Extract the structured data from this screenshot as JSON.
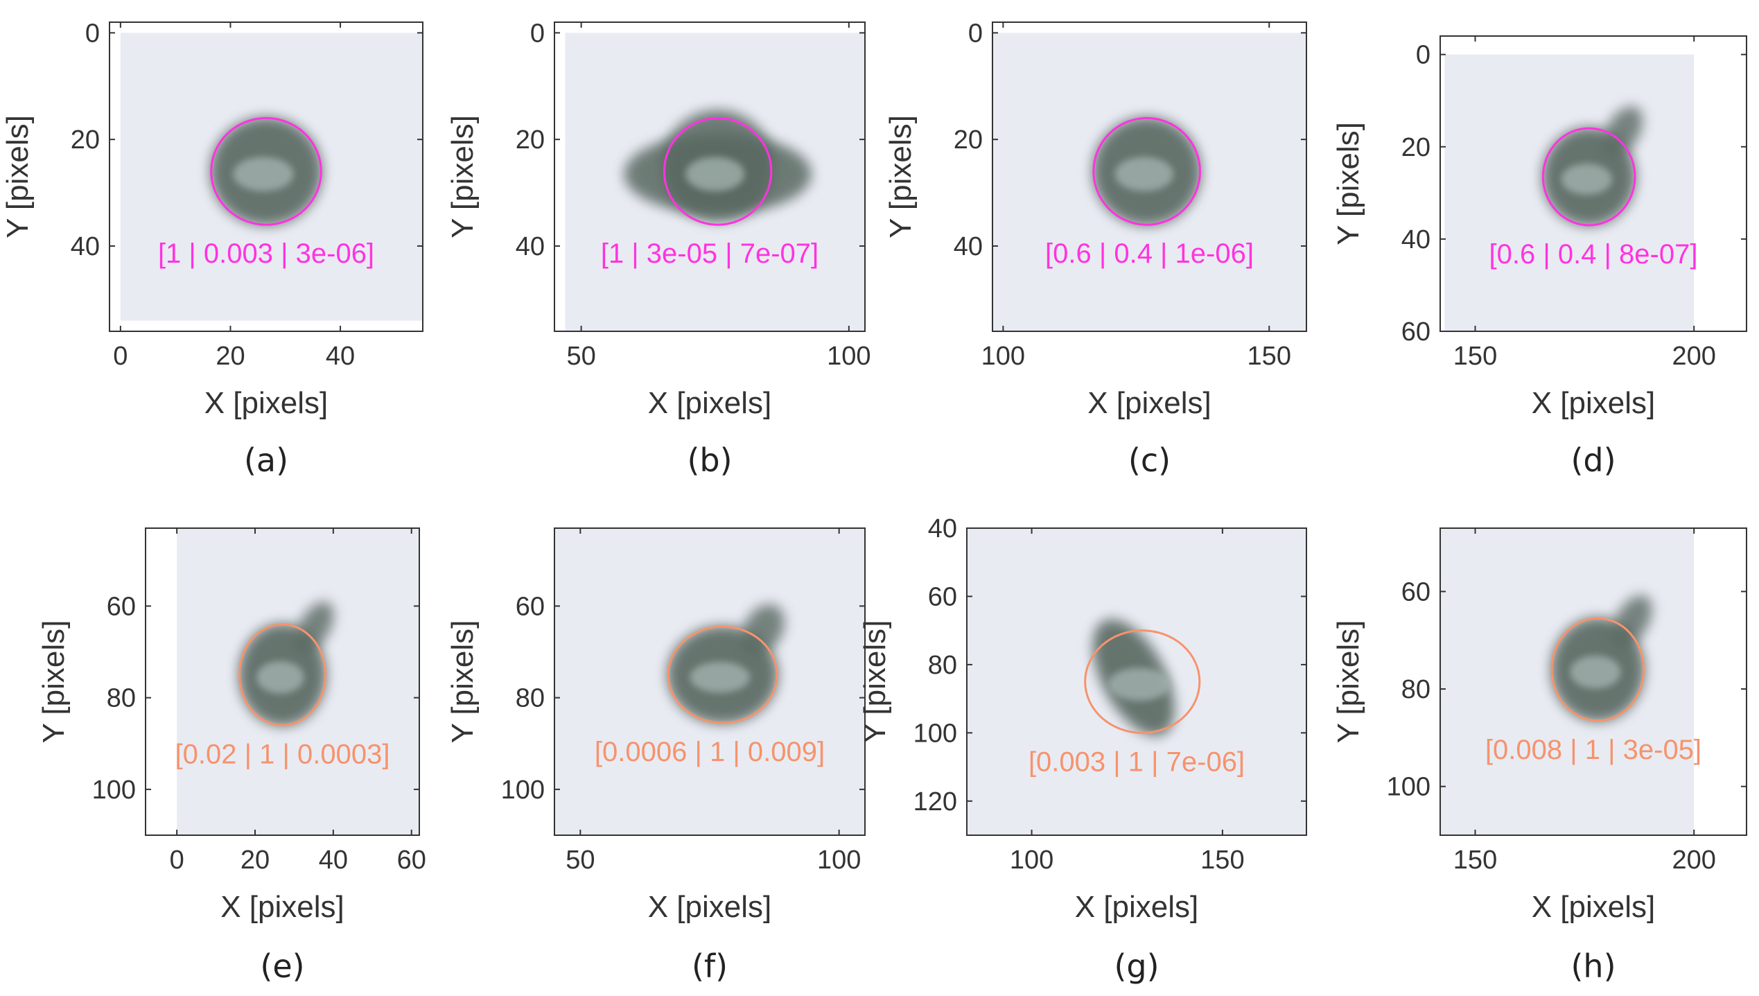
{
  "colors": {
    "background": "#ffffff",
    "axis": "#333333",
    "frame_bg": "#e9ebf3",
    "particle_dark": "#586860",
    "particle_light": "#a6b6b2",
    "row1_marker": "#ff33e0",
    "row2_marker": "#f6936c"
  },
  "panels": [
    {
      "id": "a",
      "caption": "(a)",
      "marker_color": "magenta",
      "annotation": "[1 | 0.003 | 3e-06]",
      "xlabel": "X [pixels]",
      "ylabel": "Y [pixels]",
      "xticks": [
        "0",
        "20",
        "40"
      ],
      "yticks": [
        "0",
        "20",
        "40"
      ],
      "xlim": [
        -2,
        55
      ],
      "ylim": [
        -2,
        56
      ],
      "circle": {
        "cx": 26.5,
        "cy": 26,
        "r": 10
      },
      "image_extent": {
        "x": [
          0,
          55
        ],
        "y": [
          0,
          54
        ]
      },
      "particle_shape": "round"
    },
    {
      "id": "b",
      "caption": "(b)",
      "marker_color": "magenta",
      "annotation": "[1 | 3e-05 | 7e-07]",
      "xlabel": "X [pixels]",
      "ylabel": "Y [pixels]",
      "xticks": [
        "50",
        "100"
      ],
      "yticks": [
        "0",
        "20",
        "40"
      ],
      "xlim": [
        45,
        103
      ],
      "ylim": [
        -2,
        56
      ],
      "circle": {
        "cx": 75.5,
        "cy": 26,
        "r": 10
      },
      "image_extent": {
        "x": [
          47,
          103
        ],
        "y": [
          0,
          56
        ]
      },
      "particle_shape": "wide"
    },
    {
      "id": "c",
      "caption": "(c)",
      "marker_color": "magenta",
      "annotation": "[0.6 | 0.4 | 1e-06]",
      "xlabel": "X [pixels]",
      "ylabel": "Y [pixels]",
      "xticks": [
        "100",
        "150"
      ],
      "yticks": [
        "0",
        "20",
        "40"
      ],
      "xlim": [
        98,
        157
      ],
      "ylim": [
        -2,
        56
      ],
      "circle": {
        "cx": 127,
        "cy": 26,
        "r": 10
      },
      "image_extent": {
        "x": [
          98,
          157
        ],
        "y": [
          0,
          56
        ]
      },
      "particle_shape": "round"
    },
    {
      "id": "d",
      "caption": "(d)",
      "marker_color": "magenta",
      "annotation": "[0.6 | 0.4 | 8e-07]",
      "xlabel": "X [pixels]",
      "ylabel": "Y [pixels]",
      "xticks": [
        "150",
        "200"
      ],
      "yticks": [
        "0",
        "20",
        "40",
        "60"
      ],
      "xlim": [
        142,
        212
      ],
      "ylim": [
        -4,
        60
      ],
      "circle": {
        "cx": 176,
        "cy": 26.5,
        "r": 10.5
      },
      "image_extent": {
        "x": [
          143,
          200
        ],
        "y": [
          0,
          60
        ]
      },
      "particle_shape": "tail"
    },
    {
      "id": "e",
      "caption": "(e)",
      "marker_color": "orange",
      "annotation": "[0.02 | 1 | 0.0003]",
      "xlabel": "X [pixels]",
      "ylabel": "Y [pixels]",
      "xticks": [
        "0",
        "20",
        "40",
        "60"
      ],
      "yticks": [
        "60",
        "80",
        "100"
      ],
      "xlim": [
        -8,
        62
      ],
      "ylim": [
        43,
        110
      ],
      "circle": {
        "cx": 27,
        "cy": 75,
        "r": 11
      },
      "image_extent": {
        "x": [
          0,
          62
        ],
        "y": [
          43,
          110
        ]
      },
      "particle_shape": "tail"
    },
    {
      "id": "f",
      "caption": "(f)",
      "marker_color": "orange",
      "annotation": "[0.0006 | 1 | 0.009]",
      "xlabel": "X [pixels]",
      "ylabel": "Y [pixels]",
      "xticks": [
        "50",
        "100"
      ],
      "yticks": [
        "60",
        "80",
        "100"
      ],
      "xlim": [
        45,
        105
      ],
      "ylim": [
        43,
        110
      ],
      "circle": {
        "cx": 77.5,
        "cy": 75,
        "r": 10.5
      },
      "image_extent": {
        "x": [
          45,
          105
        ],
        "y": [
          43,
          110
        ]
      },
      "particle_shape": "tail"
    },
    {
      "id": "g",
      "caption": "(g)",
      "marker_color": "orange",
      "annotation": "[0.003 | 1 | 7e-06]",
      "xlabel": "X [pixels]",
      "ylabel": "Y [pixels]",
      "xticks": [
        "100",
        "150"
      ],
      "yticks": [
        "40",
        "60",
        "80",
        "100",
        "120"
      ],
      "xlim": [
        83,
        172
      ],
      "ylim": [
        40,
        130
      ],
      "circle": {
        "cx": 129,
        "cy": 85,
        "r": 15
      },
      "image_extent": {
        "x": [
          83,
          172
        ],
        "y": [
          40,
          130
        ]
      },
      "particle_shape": "diagonal"
    },
    {
      "id": "h",
      "caption": "(h)",
      "marker_color": "orange",
      "annotation": "[0.008 | 1 | 3e-05]",
      "xlabel": "X [pixels]",
      "ylabel": "Y [pixels]",
      "xticks": [
        "150",
        "200"
      ],
      "yticks": [
        "60",
        "80",
        "100"
      ],
      "xlim": [
        142,
        212
      ],
      "ylim": [
        47,
        110
      ],
      "circle": {
        "cx": 178,
        "cy": 76,
        "r": 10.5
      },
      "image_extent": {
        "x": [
          142,
          200
        ],
        "y": [
          47,
          110
        ]
      },
      "particle_shape": "tail"
    }
  ]
}
